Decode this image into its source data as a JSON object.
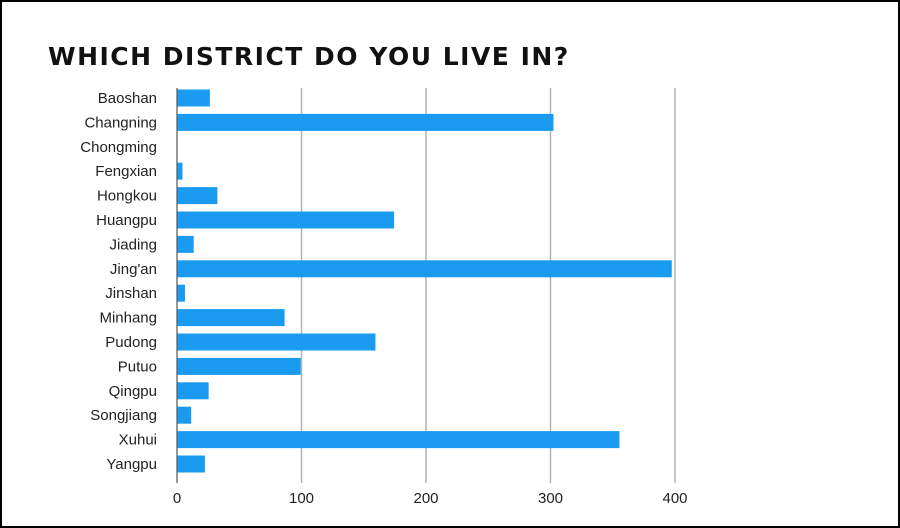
{
  "chart_data": {
    "type": "bar",
    "orientation": "horizontal",
    "title": "WHICH DISTRICT DO YOU LIVE IN?",
    "xlabel": "",
    "ylabel": "",
    "categories": [
      "Baoshan",
      "Changning",
      "Chongming",
      "Fengxian",
      "Hongkou",
      "Huangpu",
      "Jiading",
      "Jing'an",
      "Jinshan",
      "Minhang",
      "Pudong",
      "Putuo",
      "Qingpu",
      "Songjiang",
      "Xuhui",
      "Yangpu"
    ],
    "values": [
      26,
      302,
      0,
      4,
      32,
      174,
      13,
      397,
      6,
      86,
      159,
      99,
      25,
      11,
      355,
      22
    ],
    "xlim": [
      0,
      400
    ],
    "xticks": [
      0,
      100,
      200,
      300,
      400
    ],
    "grid": "vertical",
    "legend": "none",
    "bar_color": "#1a9bf0",
    "grid_color": "#b3b3b3",
    "axis_color": "#555555"
  }
}
